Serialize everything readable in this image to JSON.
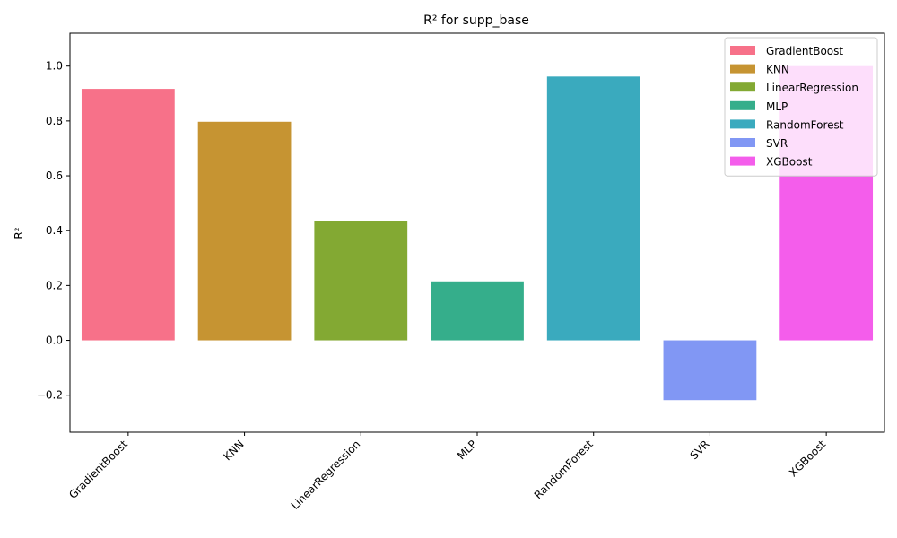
{
  "chart_data": {
    "type": "bar",
    "title": "R² for supp_base",
    "xlabel": "",
    "ylabel": "R²",
    "ylim": [
      -0.335,
      1.12
    ],
    "yticks": [
      -0.2,
      0.0,
      0.2,
      0.4,
      0.6,
      0.8,
      1.0
    ],
    "ytick_labels": [
      "−0.2",
      "0.0",
      "0.2",
      "0.4",
      "0.6",
      "0.8",
      "1.0"
    ],
    "categories": [
      "GradientBoost",
      "KNN",
      "LinearRegression",
      "MLP",
      "RandomForest",
      "SVR",
      "XGBoost"
    ],
    "values": [
      0.917,
      0.797,
      0.435,
      0.215,
      0.962,
      -0.218,
      1.0
    ],
    "colors": [
      "#f77189",
      "#c69432",
      "#83a933",
      "#35ae8b",
      "#3aaabe",
      "#8197f4",
      "#f45deb"
    ],
    "legend": {
      "placement": "top-right",
      "entries": [
        "GradientBoost",
        "KNN",
        "LinearRegression",
        "MLP",
        "RandomForest",
        "SVR",
        "XGBoost"
      ]
    },
    "grid": false
  }
}
